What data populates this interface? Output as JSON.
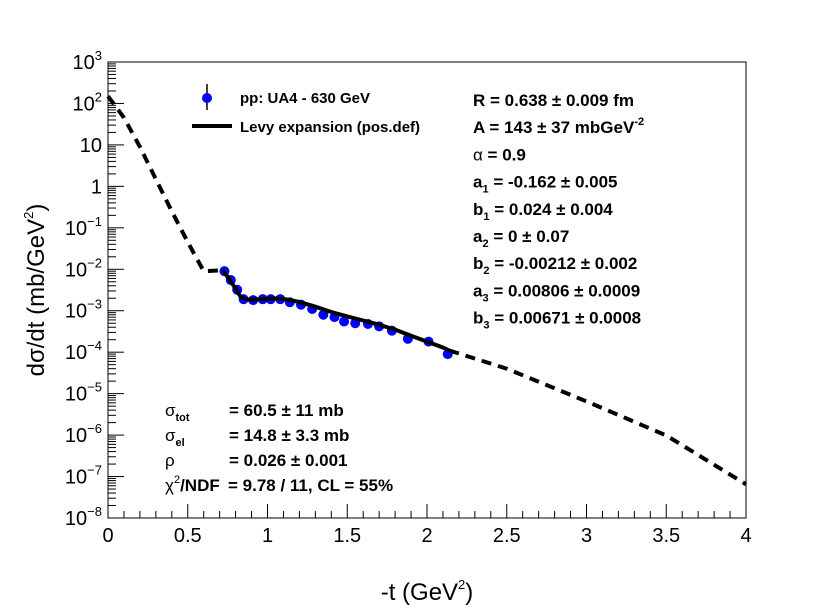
{
  "chart_data": {
    "type": "scatter",
    "title": "",
    "xlabel": "-t (GeV",
    "xlabel_sup": "2",
    "xlabel_end": ")",
    "ylabel": "dσ/dt (mb/GeV",
    "ylabel_sup": "2",
    "ylabel_end": ")",
    "xlim": [
      0,
      4
    ],
    "ylim_log10": [
      -8,
      3
    ],
    "log_y": true,
    "x_ticks": [
      0,
      0.5,
      1,
      1.5,
      2,
      2.5,
      3,
      3.5,
      4
    ],
    "x_tick_labels": [
      "0",
      "0.5",
      "1",
      "1.5",
      "2",
      "2.5",
      "3",
      "3.5",
      "4"
    ],
    "y_ticks": [
      {
        "exp": -8,
        "label": "10",
        "sup": "−8"
      },
      {
        "exp": -7,
        "label": "10",
        "sup": "−7"
      },
      {
        "exp": -6,
        "label": "10",
        "sup": "−6"
      },
      {
        "exp": -5,
        "label": "10",
        "sup": "−5"
      },
      {
        "exp": -4,
        "label": "10",
        "sup": "−4"
      },
      {
        "exp": -3,
        "label": "10",
        "sup": "−3"
      },
      {
        "exp": -2,
        "label": "10",
        "sup": "−2"
      },
      {
        "exp": -1,
        "label": "10",
        "sup": "−1"
      },
      {
        "exp": 0,
        "label": "1",
        "sup": ""
      },
      {
        "exp": 1,
        "label": "10",
        "sup": ""
      },
      {
        "exp": 2,
        "label": "10",
        "sup": "2"
      },
      {
        "exp": 3,
        "label": "10",
        "sup": "3"
      }
    ],
    "series": [
      {
        "name": "pp: UA4 - 630 GeV",
        "kind": "points",
        "color": "#0000ff",
        "x": [
          0.73,
          0.77,
          0.81,
          0.85,
          0.91,
          0.97,
          1.02,
          1.08,
          1.14,
          1.21,
          1.28,
          1.35,
          1.42,
          1.48,
          1.55,
          1.63,
          1.7,
          1.78,
          1.88,
          2.01,
          2.13
        ],
        "y": [
          0.009,
          0.0055,
          0.0032,
          0.0019,
          0.0018,
          0.0019,
          0.0019,
          0.0019,
          0.0016,
          0.0014,
          0.0011,
          0.0008,
          0.0007,
          0.00055,
          0.0005,
          0.00048,
          0.00042,
          0.00033,
          0.00021,
          0.00018,
          9e-05
        ]
      },
      {
        "name": "Levy expansion (pos.def)",
        "kind": "line-solid",
        "color": "#000000",
        "x": [
          0.72,
          0.76,
          0.8,
          0.83,
          0.86,
          0.9,
          0.95,
          1.0,
          1.05,
          1.1,
          1.15,
          1.2,
          1.3,
          1.4,
          1.5,
          1.6,
          1.7,
          1.8,
          1.9,
          2.0,
          2.1,
          2.14
        ],
        "y": [
          0.0095,
          0.0058,
          0.0034,
          0.0022,
          0.0019,
          0.00183,
          0.00188,
          0.00195,
          0.00198,
          0.00192,
          0.00178,
          0.00162,
          0.00125,
          0.00093,
          0.00073,
          0.00058,
          0.00046,
          0.00035,
          0.00025,
          0.00018,
          0.00013,
          0.00011
        ]
      },
      {
        "name": "Levy extrapolation",
        "kind": "line-dashed",
        "color": "#000000",
        "segments": [
          {
            "x": [
              0.0,
              0.1,
              0.2,
              0.3,
              0.4,
              0.5,
              0.6,
              0.72
            ],
            "y": [
              150,
              45,
              9,
              1.5,
              0.25,
              0.045,
              0.009,
              0.0095
            ]
          },
          {
            "x": [
              2.14,
              2.5,
              3.0,
              3.5,
              4.0
            ],
            "y": [
              0.00011,
              4e-05,
              6.5e-06,
              9.8e-07,
              6.5e-08
            ]
          }
        ]
      }
    ],
    "legend": [
      {
        "label": "pp: UA4 - 630 GeV",
        "marker": "point"
      },
      {
        "label": "Levy expansion (pos.def)",
        "marker": "line"
      }
    ],
    "fit_params": [
      {
        "name": "R",
        "sub": "",
        "sup": "",
        "value": " = 0.638 ",
        "err": "± 0.009 fm",
        "sup_after": ""
      },
      {
        "name": "A",
        "sub": "",
        "sup": "",
        "value": " = 143 ",
        "err": "± 37 mbGeV",
        "sup_after": "-2"
      },
      {
        "name": "α",
        "sub": "",
        "sup": "",
        "value": " = 0.9",
        "err": "",
        "sup_after": ""
      },
      {
        "name": "a",
        "sub": "1",
        "sup": "",
        "value": " = -0.162 ",
        "err": "± 0.005",
        "sup_after": ""
      },
      {
        "name": "b",
        "sub": "1",
        "sup": "",
        "value": " = 0.024 ",
        "err": "± 0.004",
        "sup_after": ""
      },
      {
        "name": "a",
        "sub": "2",
        "sup": "",
        "value": " = 0 ",
        "err": "± 0.07",
        "sup_after": ""
      },
      {
        "name": "b",
        "sub": "2",
        "sup": "",
        "value": " = -0.00212 ",
        "err": "± 0.002",
        "sup_after": ""
      },
      {
        "name": "a",
        "sub": "3",
        "sup": "",
        "value": " = 0.00806 ",
        "err": "± 0.0009",
        "sup_after": ""
      },
      {
        "name": "b",
        "sub": "3",
        "sup": "",
        "value": " = 0.00671 ",
        "err": "± 0.0008",
        "sup_after": ""
      }
    ],
    "cross_sections": [
      {
        "name": "σ",
        "sub": "tot",
        "sup": "",
        "value": "= 60.5 ",
        "err": "± 11 mb"
      },
      {
        "name": "σ",
        "sub": "el",
        "sup": "",
        "value": "= 14.8 ",
        "err": "± 3.3 mb"
      },
      {
        "name": "ρ",
        "sub": "",
        "sup": "",
        "value": "= 0.026 ",
        "err": "± 0.001"
      },
      {
        "name": "χ",
        "sub": "",
        "sup": "2",
        "name_after": "/NDF",
        "value": "= 9.78 / 11,  CL = 55%",
        "err": ""
      }
    ]
  }
}
